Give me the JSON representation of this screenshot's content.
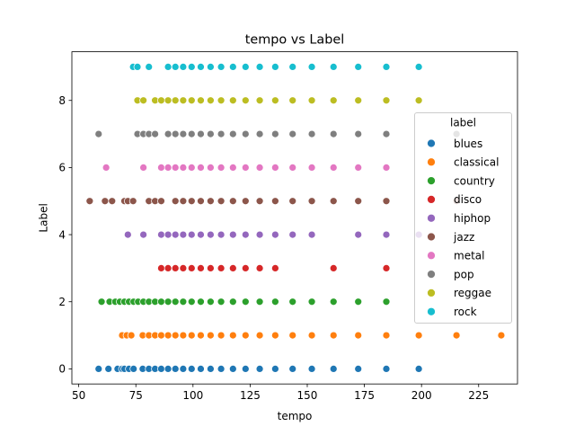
{
  "chart_data": {
    "type": "scatter",
    "title": "tempo vs Label",
    "xlabel": "tempo",
    "ylabel": "Label",
    "xlim": [
      47,
      242
    ],
    "ylim": [
      -0.45,
      9.45
    ],
    "xticks": [
      50,
      75,
      100,
      125,
      150,
      175,
      200,
      225
    ],
    "yticks": [
      0,
      2,
      4,
      6,
      8
    ],
    "grid": false,
    "legend": {
      "title": "label",
      "position": "right"
    },
    "series": [
      {
        "name": "blues",
        "color": "#1f77b4",
        "y": 0,
        "x": [
          58.7,
          63.0,
          67.0,
          69.0,
          70.0,
          72.0,
          74.0,
          78.0,
          80.7,
          83.4,
          86.1,
          89.1,
          92.3,
          95.7,
          99.4,
          103.4,
          107.7,
          112.3,
          117.5,
          123.0,
          129.2,
          136.0,
          143.6,
          152.0,
          161.5,
          172.3,
          184.6,
          198.8
        ]
      },
      {
        "name": "classical",
        "color": "#ff7f0e",
        "y": 1,
        "x": [
          69.0,
          71.0,
          73.0,
          78.0,
          80.7,
          83.4,
          86.1,
          89.1,
          92.3,
          95.7,
          99.4,
          103.4,
          107.7,
          112.3,
          117.5,
          123.0,
          129.2,
          136.0,
          143.6,
          152.0,
          161.5,
          172.3,
          184.6,
          198.8,
          215.3,
          234.9
        ]
      },
      {
        "name": "country",
        "color": "#2ca02c",
        "y": 2,
        "x": [
          60.0,
          63.5,
          66.0,
          68.0,
          70.0,
          72.0,
          74.0,
          76.0,
          78.3,
          80.7,
          83.4,
          86.1,
          89.1,
          92.3,
          95.7,
          99.4,
          103.4,
          107.7,
          112.3,
          117.5,
          123.0,
          129.2,
          136.0,
          143.6,
          152.0,
          161.5,
          172.3,
          184.6
        ]
      },
      {
        "name": "disco",
        "color": "#d62728",
        "y": 3,
        "x": [
          86.1,
          89.1,
          92.3,
          95.7,
          99.4,
          103.4,
          107.7,
          112.3,
          117.5,
          123.0,
          129.2,
          136.0,
          161.5,
          184.6
        ]
      },
      {
        "name": "hiphop",
        "color": "#9467bd",
        "y": 4,
        "x": [
          71.5,
          78.3,
          86.1,
          89.1,
          92.3,
          95.7,
          99.4,
          103.4,
          107.7,
          112.3,
          117.5,
          123.0,
          129.2,
          136.0,
          143.6,
          152.0,
          172.3,
          184.6,
          198.8
        ]
      },
      {
        "name": "jazz",
        "color": "#8c564b",
        "y": 5,
        "x": [
          54.8,
          61.5,
          64.6,
          70.0,
          71.5,
          73.8,
          80.7,
          83.4,
          86.1,
          92.3,
          95.7,
          99.4,
          103.4,
          107.7,
          112.3,
          117.5,
          123.0,
          129.2,
          136.0,
          143.6,
          152.0,
          161.5,
          172.3,
          184.6,
          215.3
        ]
      },
      {
        "name": "metal",
        "color": "#e377c2",
        "y": 6,
        "x": [
          62.0,
          78.3,
          86.1,
          89.1,
          92.3,
          95.7,
          99.4,
          103.4,
          107.7,
          112.3,
          117.5,
          123.0,
          129.2,
          136.0,
          143.6,
          152.0,
          161.5,
          172.3,
          184.6
        ]
      },
      {
        "name": "pop",
        "color": "#7f7f7f",
        "y": 7,
        "x": [
          58.7,
          75.7,
          78.3,
          80.7,
          83.4,
          89.1,
          92.3,
          95.7,
          99.4,
          103.4,
          107.7,
          112.3,
          117.5,
          123.0,
          129.2,
          136.0,
          143.6,
          152.0,
          161.5,
          172.3,
          184.6,
          215.3
        ]
      },
      {
        "name": "reggae",
        "color": "#bcbd22",
        "y": 8,
        "x": [
          75.7,
          78.3,
          83.4,
          86.1,
          89.1,
          92.3,
          95.7,
          99.4,
          103.4,
          107.7,
          112.3,
          117.5,
          123.0,
          129.2,
          136.0,
          143.6,
          152.0,
          161.5,
          172.3,
          184.6,
          198.8
        ]
      },
      {
        "name": "rock",
        "color": "#17becf",
        "y": 9,
        "x": [
          73.8,
          75.7,
          80.7,
          89.1,
          92.3,
          95.7,
          99.4,
          103.4,
          107.7,
          112.3,
          117.5,
          123.0,
          129.2,
          136.0,
          143.6,
          152.0,
          161.5,
          172.3,
          184.6,
          198.8
        ]
      }
    ]
  }
}
